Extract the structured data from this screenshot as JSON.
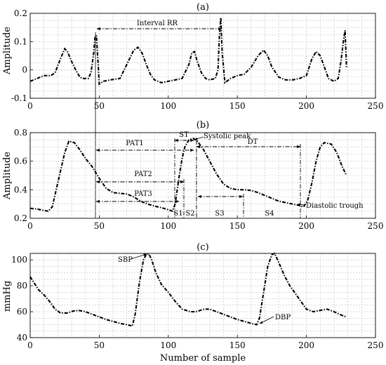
{
  "chart_data": [
    {
      "type": "line",
      "title": "(a)",
      "xlabel": "",
      "ylabel": "Amplitude",
      "xlim": [
        0,
        250
      ],
      "ylim": [
        -0.1,
        0.2
      ],
      "xticks": [
        0,
        50,
        100,
        150,
        200,
        250
      ],
      "yticks": [
        -0.1,
        0,
        0.1,
        0.2
      ],
      "grid": true,
      "series": [
        {
          "x": [
            0,
            5,
            10,
            15,
            18,
            22,
            25,
            27,
            30,
            33,
            36,
            38,
            42,
            44,
            46,
            47,
            48,
            50,
            53,
            58,
            65,
            70,
            75,
            78,
            81,
            84,
            87,
            90,
            95,
            100,
            105,
            110,
            115,
            117,
            119,
            121,
            124,
            127,
            130,
            134,
            136,
            137,
            138,
            139,
            141,
            145,
            150,
            155,
            160,
            165,
            169,
            172,
            175,
            180,
            185,
            190,
            195,
            200,
            204,
            207,
            210,
            213,
            216,
            220,
            223,
            225,
            227,
            228,
            229
          ],
          "y": [
            -0.04,
            -0.03,
            -0.02,
            -0.02,
            -0.01,
            0.04,
            0.075,
            0.065,
            0.03,
            0.0,
            -0.025,
            -0.03,
            -0.03,
            -0.01,
            0.06,
            0.12,
            0.12,
            -0.05,
            -0.04,
            -0.035,
            -0.03,
            0.02,
            0.07,
            0.08,
            0.06,
            0.02,
            -0.015,
            -0.035,
            -0.045,
            -0.04,
            -0.035,
            -0.03,
            0.02,
            0.06,
            0.065,
            0.03,
            -0.01,
            -0.03,
            -0.035,
            -0.03,
            0.0,
            0.12,
            0.185,
            0.06,
            -0.045,
            -0.03,
            -0.02,
            -0.015,
            0.01,
            0.05,
            0.07,
            0.05,
            0.01,
            -0.025,
            -0.035,
            -0.035,
            -0.03,
            -0.02,
            0.04,
            0.065,
            0.05,
            0.01,
            -0.03,
            -0.04,
            -0.03,
            0.03,
            0.11,
            0.14,
            0.01
          ]
        }
      ],
      "annotations": [
        {
          "text": "Interval RR",
          "x": 89,
          "y": 0.175
        },
        {
          "text": "(a)",
          "role": "panel-label"
        }
      ]
    },
    {
      "type": "line",
      "title": "(b)",
      "xlabel": "",
      "ylabel": "Amplitude",
      "xlim": [
        0,
        250
      ],
      "ylim": [
        0.2,
        0.8
      ],
      "xticks": [
        0,
        50,
        100,
        150,
        200,
        250
      ],
      "yticks": [
        0.2,
        0.4,
        0.6,
        0.8
      ],
      "grid": true,
      "series": [
        {
          "x": [
            0,
            5,
            10,
            13,
            16,
            20,
            25,
            28,
            32,
            36,
            40,
            45,
            50,
            55,
            60,
            65,
            70,
            75,
            80,
            85,
            90,
            95,
            100,
            103,
            105,
            108,
            110,
            112,
            115,
            118,
            121,
            125,
            130,
            135,
            140,
            145,
            150,
            155,
            160,
            165,
            170,
            175,
            180,
            185,
            190,
            195,
            198,
            201,
            204,
            207,
            210,
            213,
            218,
            222,
            226,
            229
          ],
          "y": [
            0.27,
            0.265,
            0.255,
            0.25,
            0.28,
            0.45,
            0.66,
            0.74,
            0.73,
            0.68,
            0.62,
            0.56,
            0.48,
            0.41,
            0.38,
            0.375,
            0.37,
            0.35,
            0.32,
            0.3,
            0.285,
            0.275,
            0.26,
            0.25,
            0.3,
            0.5,
            0.62,
            0.7,
            0.75,
            0.76,
            0.74,
            0.69,
            0.6,
            0.51,
            0.44,
            0.41,
            0.4,
            0.4,
            0.395,
            0.38,
            0.36,
            0.34,
            0.32,
            0.31,
            0.3,
            0.29,
            0.28,
            0.33,
            0.45,
            0.6,
            0.7,
            0.73,
            0.72,
            0.66,
            0.56,
            0.5
          ]
        }
      ],
      "annotations": [
        {
          "text": "PAT1"
        },
        {
          "text": "PAT2"
        },
        {
          "text": "PAT3"
        },
        {
          "text": "ST"
        },
        {
          "text": "DT"
        },
        {
          "text": "Systolic peak"
        },
        {
          "text": "Diastolic trough"
        },
        {
          "text": "S1"
        },
        {
          "text": "S2"
        },
        {
          "text": "S3"
        },
        {
          "text": "S4"
        },
        {
          "text": "(b)",
          "role": "panel-label"
        }
      ]
    },
    {
      "type": "line",
      "title": "(c)",
      "xlabel": "Number of sample",
      "ylabel": "mmHg",
      "xlim": [
        0,
        250
      ],
      "ylim": [
        40,
        105
      ],
      "xticks": [
        0,
        50,
        100,
        150,
        200,
        250
      ],
      "yticks": [
        40,
        60,
        80,
        100
      ],
      "grid": true,
      "series": [
        {
          "x": [
            0,
            3,
            6,
            10,
            14,
            18,
            22,
            27,
            31,
            35,
            40,
            45,
            50,
            55,
            60,
            65,
            70,
            74,
            76,
            79,
            82,
            84,
            86,
            88,
            91,
            95,
            100,
            105,
            110,
            116,
            120,
            126,
            130,
            135,
            140,
            145,
            150,
            155,
            160,
            164,
            166,
            169,
            172,
            175,
            177,
            180,
            184,
            188,
            192,
            196,
            200,
            205,
            210,
            215,
            220,
            225,
            229
          ],
          "y": [
            87,
            82,
            77,
            73,
            68,
            62,
            59,
            59,
            60.5,
            61,
            60,
            58,
            56,
            54,
            52.5,
            51,
            50,
            49,
            58,
            82,
            100,
            104,
            104.5,
            100,
            90,
            81,
            75,
            68,
            62,
            60,
            60,
            62,
            62,
            60,
            58,
            56,
            54,
            52.5,
            51,
            50,
            55,
            75,
            95,
            104,
            105,
            98,
            88,
            80,
            74,
            68,
            62,
            60,
            61,
            62,
            60,
            57.5,
            56
          ]
        }
      ],
      "annotations": [
        {
          "text": "SBP"
        },
        {
          "text": "DBP"
        },
        {
          "text": "(c)",
          "role": "panel-label"
        }
      ]
    }
  ],
  "labels": {
    "title_a": "(a)",
    "title_b": "(b)",
    "title_c": "(c)",
    "ylabel_a": "Amplitude",
    "ylabel_b": "Amplitude",
    "ylabel_c": "mmHg",
    "xlabel_c": "Number of sample",
    "interval_rr": "Interval RR",
    "pat1": "PAT1",
    "pat2": "PAT2",
    "pat3": "PAT3",
    "st": "ST",
    "dt": "DT",
    "systolic_peak": "Systolic peak",
    "diastolic_trough": "Diastolic trough",
    "s1": "S1",
    "s2": "S2",
    "s3": "S3",
    "s4": "S4",
    "sbp": "SBP",
    "dbp": "DBP"
  }
}
